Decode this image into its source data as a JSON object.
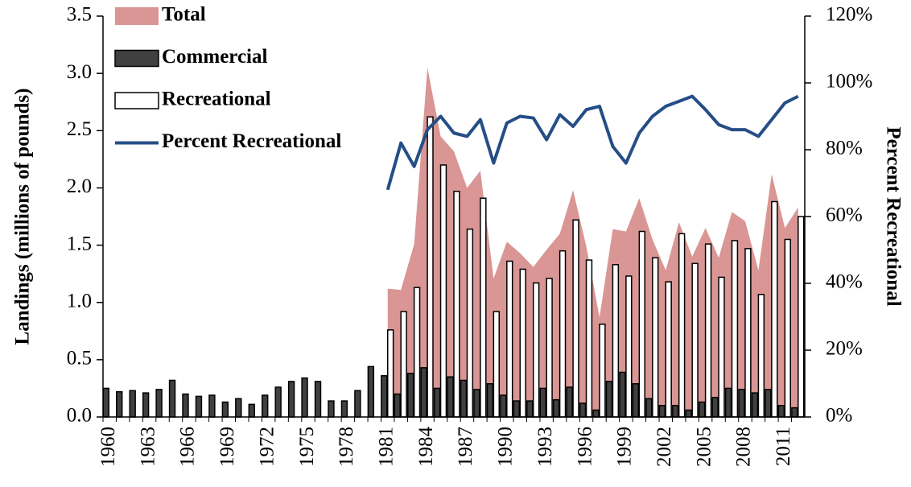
{
  "chart_data": {
    "type": "bar",
    "y_label": "Landings (millions of pounds)",
    "y2_label": "Percent Recreational",
    "categories": [
      "1960",
      null,
      null,
      "1963",
      null,
      null,
      "1966",
      null,
      null,
      "1969",
      null,
      null,
      "1972",
      null,
      null,
      "1975",
      null,
      null,
      "1978",
      null,
      null,
      "1981",
      null,
      null,
      "1984",
      null,
      null,
      "1987",
      null,
      null,
      "1990",
      null,
      null,
      "1993",
      null,
      null,
      "1996",
      null,
      null,
      "1999",
      null,
      null,
      "2002",
      null,
      null,
      "2005",
      null,
      null,
      "2008",
      null,
      null,
      "2011",
      null
    ],
    "ylim": [
      0,
      3.5
    ],
    "yticks": [
      {
        "value": 0,
        "label": "0.0"
      },
      0.5,
      {
        "value": 1,
        "label": "1.0"
      },
      1.5,
      {
        "value": 2,
        "label": "2.0"
      },
      2.5,
      {
        "value": 3,
        "label": "3.0"
      },
      3.5
    ],
    "y2lim": [
      0,
      120
    ],
    "y2ticks": [
      {
        "value": 0,
        "label": "0%"
      },
      {
        "value": 20,
        "label": "20%"
      },
      {
        "value": 40,
        "label": "40%"
      },
      {
        "value": 60,
        "label": "60%"
      },
      {
        "value": 80,
        "label": "80%"
      },
      {
        "value": 100,
        "label": "100%"
      },
      {
        "value": 120,
        "label": "120%"
      }
    ],
    "legend": "top-left",
    "series": [
      {
        "name": "Total",
        "type": "area",
        "color": "#d99694",
        "values": [
          null,
          null,
          null,
          null,
          null,
          null,
          null,
          null,
          null,
          null,
          null,
          null,
          null,
          null,
          null,
          null,
          null,
          null,
          null,
          null,
          null,
          1.12,
          1.11,
          1.51,
          3.05,
          2.45,
          2.32,
          2.0,
          2.15,
          1.21,
          1.53,
          1.43,
          1.31,
          1.46,
          1.6,
          1.98,
          1.49,
          0.87,
          1.64,
          1.62,
          1.91,
          1.55,
          1.28,
          1.7,
          1.4,
          1.65,
          1.39,
          1.79,
          1.71,
          1.28,
          2.12,
          1.65,
          1.83
        ]
      },
      {
        "name": "Commercial",
        "type": "bar",
        "color": "#404040",
        "values": [
          0.25,
          0.22,
          0.23,
          0.21,
          0.24,
          0.32,
          0.2,
          0.18,
          0.19,
          0.13,
          0.16,
          0.11,
          0.19,
          0.26,
          0.31,
          0.34,
          0.31,
          0.14,
          0.14,
          0.23,
          0.44,
          0.36,
          0.2,
          0.38,
          0.43,
          0.25,
          0.35,
          0.32,
          0.24,
          0.29,
          0.19,
          0.14,
          0.14,
          0.25,
          0.15,
          0.26,
          0.12,
          0.06,
          0.31,
          0.39,
          0.29,
          0.16,
          0.1,
          0.1,
          0.06,
          0.13,
          0.17,
          0.25,
          0.24,
          0.21,
          0.24,
          0.1,
          0.08
        ]
      },
      {
        "name": "Recreational",
        "type": "bar",
        "color": "#ffffff",
        "values": [
          null,
          null,
          null,
          null,
          null,
          null,
          null,
          null,
          null,
          null,
          null,
          null,
          null,
          null,
          null,
          null,
          null,
          null,
          null,
          null,
          null,
          0.76,
          0.92,
          1.13,
          2.62,
          2.2,
          1.97,
          1.64,
          1.91,
          0.92,
          1.36,
          1.29,
          1.17,
          1.21,
          1.45,
          1.72,
          1.37,
          0.81,
          1.33,
          1.23,
          1.62,
          1.39,
          1.18,
          1.6,
          1.34,
          1.51,
          1.22,
          1.54,
          1.47,
          1.07,
          1.88,
          1.55,
          1.75
        ]
      },
      {
        "name": "Percent Recreational",
        "type": "line",
        "axis": "y2",
        "color": "#254e86",
        "values": [
          null,
          null,
          null,
          null,
          null,
          null,
          null,
          null,
          null,
          null,
          null,
          null,
          null,
          null,
          null,
          null,
          null,
          null,
          null,
          null,
          null,
          68,
          82,
          75,
          86,
          90,
          85,
          84,
          89,
          76,
          88,
          90,
          89.5,
          83,
          90.5,
          87,
          92,
          93,
          81,
          76,
          85,
          90,
          93,
          94.5,
          96,
          92,
          87.5,
          86,
          86,
          84,
          89,
          94,
          96
        ]
      }
    ]
  }
}
